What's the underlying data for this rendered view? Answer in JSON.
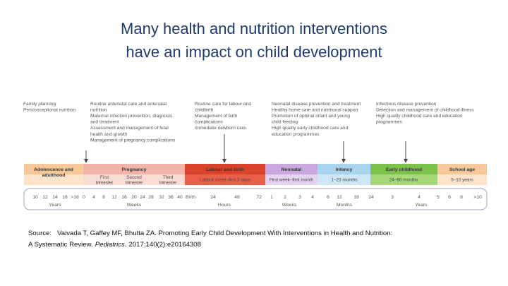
{
  "title": [
    "Many health and nutrition interventions",
    "have an impact on child development"
  ],
  "interventions": [
    [
      "Family planning",
      "Periconceptional nutrition"
    ],
    [
      "Routine antenatal care and antenatal",
      "nutrition",
      "Maternal infection prevention, diagnosis,",
      "and treatment",
      "Assessment and management of fetal",
      "health and growth",
      "Management of pregnancy complications"
    ],
    [
      "Routine care for labour and",
      "childbirth",
      "Management of birth",
      "complications",
      "Immediate newborn care"
    ],
    [
      "Neonatal disease prevention and treatment",
      "Healthy home care and nutritional support",
      "Promotion of optimal infant and young",
      "child feeding",
      "High quality early childhood care and",
      "education programmes"
    ],
    [
      "Infectious disease prevention",
      "Detection and management of childhood illness",
      "High quality childhood care and education",
      "programmes"
    ]
  ],
  "phases": [
    {
      "label": [
        "Adolescence and",
        "adulthood"
      ],
      "sub": []
    },
    {
      "label": [
        "Pregnancy"
      ],
      "sub": [
        [
          "First",
          "trimester"
        ],
        [
          "Second",
          "trimester"
        ],
        [
          "Third",
          "trimester"
        ]
      ]
    },
    {
      "label": [
        "Labour and birth"
      ],
      "sub": [
        [
          "Labour onset–first 3 days"
        ]
      ]
    },
    {
      "label": [
        "Neonatal"
      ],
      "sub": [
        [
          "First week–first month"
        ]
      ]
    },
    {
      "label": [
        "Infancy"
      ],
      "sub": [
        [
          "1–23 months"
        ]
      ]
    },
    {
      "label": [
        "Early childhood"
      ],
      "sub": [
        [
          "24–60 months"
        ]
      ]
    },
    {
      "label": [
        "School age"
      ],
      "sub": [
        [
          "5–10 years"
        ]
      ]
    }
  ],
  "ticks": [
    "10",
    "12",
    "14",
    "16",
    ">18",
    "0",
    "4",
    "8",
    "12",
    "16",
    "20",
    "24",
    "28",
    "32",
    "36",
    "40",
    "Birth",
    "24",
    "48",
    "72",
    "1",
    "2",
    "3",
    "4",
    "6",
    "12",
    "18",
    "24",
    "3",
    "4",
    "5",
    "6",
    "8",
    ">10"
  ],
  "units": [
    "Years",
    "Weeks",
    "Hours",
    "Weeks",
    "Months",
    "Years"
  ],
  "source": {
    "prefix": "Source:",
    "line1": "Vaivada T, Gaffey MF, Bhutta ZA. Promoting Early Child Development With Interventions in Health and Nutrition:",
    "line2": "A Systematic Review.",
    "journal": "Pediatrics.",
    "citation": "2017;140(2):e20164308"
  }
}
